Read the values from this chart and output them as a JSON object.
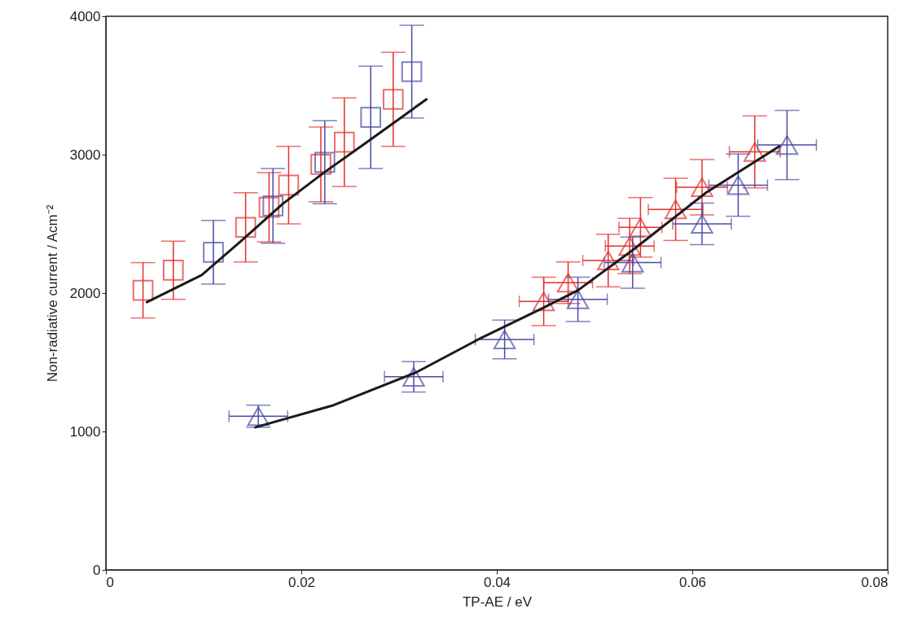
{
  "chart_data": {
    "type": "scatter",
    "xlabel": "TP-AE / eV",
    "ylabel": "Non-radiative current / Acm⁻²",
    "xlim": [
      0,
      0.08
    ],
    "xticks": [
      0,
      0.02,
      0.04,
      0.06,
      0.08
    ],
    "ylim": [
      0,
      4000
    ],
    "yticks": [
      0,
      1000,
      2000,
      3000,
      4000
    ],
    "series": [
      {
        "color": "#e3302b",
        "marker": "square",
        "x": [
          0.0038,
          0.0069,
          0.0143,
          0.0167,
          0.0187,
          0.022,
          0.0244,
          0.0294
        ],
        "values": [
          2020,
          2165,
          2475,
          2620,
          2780,
          2930,
          3090,
          3400
        ],
        "errors": [
          200,
          210,
          250,
          250,
          280,
          270,
          320,
          340
        ]
      },
      {
        "color": "#4a4aa8",
        "marker": "square",
        "x": [
          0.011,
          0.0171,
          0.0224,
          0.0271,
          0.0313
        ],
        "values": [
          2295,
          2630,
          2945,
          3270,
          3600
        ],
        "errors": [
          230,
          270,
          300,
          370,
          335
        ]
      },
      {
        "color": "#e3302b",
        "marker": "triangle",
        "x": [
          0.0448,
          0.0473,
          0.0514,
          0.0536,
          0.0547,
          0.0583,
          0.061,
          0.0664
        ],
        "values": [
          1940,
          2075,
          2235,
          2340,
          2475,
          2605,
          2765,
          3020
        ],
        "errors": [
          175,
          150,
          190,
          200,
          215,
          225,
          200,
          260
        ],
        "xerrors": [
          0.0025,
          0.0025,
          0.0026,
          0.0025,
          0.0022,
          0.0028,
          0.0026,
          0.0026
        ]
      },
      {
        "color": "#4a4aa8",
        "marker": "triangle",
        "x": [
          0.0156,
          0.0315,
          0.0408,
          0.0483,
          0.0539,
          0.061,
          0.0647,
          0.0697
        ],
        "values": [
          1110,
          1395,
          1665,
          1955,
          2220,
          2500,
          2780,
          3070
        ],
        "errors": [
          80,
          110,
          140,
          160,
          185,
          150,
          225,
          250
        ],
        "xerrors": [
          0.003,
          0.003,
          0.003,
          0.003,
          0.0029,
          0.003,
          0.003,
          0.003
        ]
      },
      {
        "type": "line",
        "color": "#1a1a1a",
        "marker": "none",
        "x": [
          0.0042,
          0.0098,
          0.0139,
          0.0181,
          0.0223,
          0.0264,
          0.0328
        ],
        "values": [
          1935,
          2130,
          2380,
          2645,
          2870,
          3075,
          3400
        ]
      },
      {
        "type": "line",
        "color": "#1a1a1a",
        "marker": "none",
        "x": [
          0.0153,
          0.0233,
          0.0317,
          0.0381,
          0.0448,
          0.0483,
          0.0539,
          0.0614,
          0.0689
        ],
        "values": [
          1030,
          1190,
          1425,
          1665,
          1895,
          2020,
          2310,
          2725,
          3060
        ]
      }
    ]
  }
}
